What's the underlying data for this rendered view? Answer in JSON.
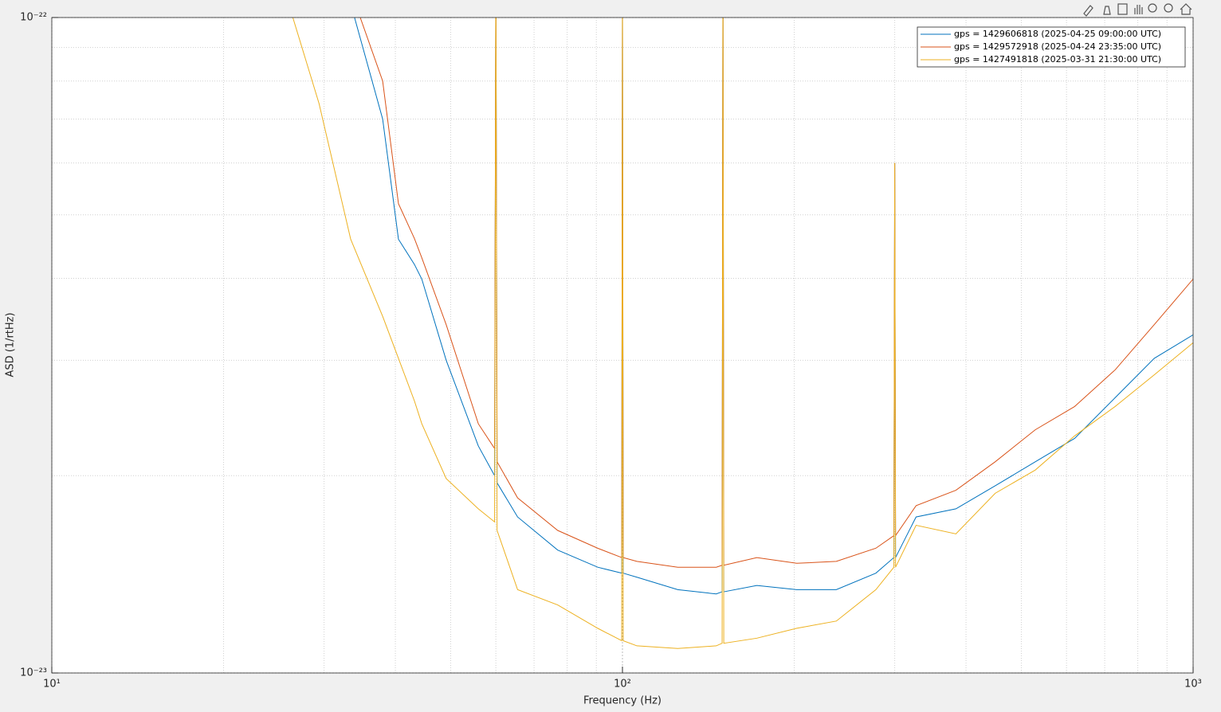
{
  "chart_data": {
    "type": "line",
    "xlabel": "Frequency (Hz)",
    "ylabel": "ASD (1/rtHz)",
    "xscale": "log",
    "yscale": "log",
    "grid": true,
    "legend": "upper right",
    "xlim": [
      10,
      1000
    ],
    "ylim": [
      1e-23,
      1e-22
    ],
    "xticks": [
      {
        "value": 10,
        "label": "10¹"
      },
      {
        "value": 100,
        "label": "10²"
      },
      {
        "value": 1000,
        "label": "10³"
      }
    ],
    "yticks": [
      {
        "value": 1e-23,
        "label": "10⁻²³"
      },
      {
        "value": 1e-22,
        "label": "10⁻²²"
      }
    ],
    "x": [
      26,
      29.4,
      33.4,
      38,
      40.5,
      43.2,
      44.5,
      49.1,
      55.9,
      59.7,
      60,
      60.3,
      65.5,
      77,
      90.5,
      99.7,
      100,
      100.3,
      106,
      125,
      146,
      149.5,
      150,
      150.5,
      172,
      202,
      237,
      278,
      299,
      300,
      301,
      327,
      384,
      450,
      529,
      620,
      730,
      855,
      1000
    ],
    "series": [
      {
        "name": "gps = 1429606818 (2025-04-25 09:00:00 UTC)",
        "color": "#0072bd",
        "values": [
          null,
          null,
          1.05e-22,
          7e-23,
          4.59e-23,
          4.2e-23,
          3.99e-23,
          3e-23,
          2.22e-23,
          2e-23,
          1.2e-22,
          1.95e-23,
          1.73e-23,
          1.54e-23,
          1.45e-23,
          1.42e-23,
          1.1e-22,
          1.42e-23,
          1.4e-23,
          1.34e-23,
          1.32e-23,
          1.33e-23,
          1.2e-22,
          1.33e-23,
          1.36e-23,
          1.34e-23,
          1.34e-23,
          1.42e-23,
          1.5e-23,
          6e-23,
          1.5e-23,
          1.73e-23,
          1.78e-23,
          1.93e-23,
          2.1e-23,
          2.28e-23,
          2.63e-23,
          3.02e-23,
          3.28e-23
        ]
      },
      {
        "name": "gps = 1429572918 (2025-04-24 23:35:00 UTC)",
        "color": "#d95319",
        "values": [
          null,
          null,
          1.1e-22,
          8e-23,
          5.2e-23,
          4.6e-23,
          4.3e-23,
          3.4e-23,
          2.4e-23,
          2.2e-23,
          1.2e-22,
          2.1e-23,
          1.85e-23,
          1.65e-23,
          1.55e-23,
          1.5e-23,
          1.1e-22,
          1.5e-23,
          1.48e-23,
          1.45e-23,
          1.45e-23,
          1.46e-23,
          1.2e-22,
          1.46e-23,
          1.5e-23,
          1.47e-23,
          1.48e-23,
          1.55e-23,
          1.62e-23,
          6e-23,
          1.62e-23,
          1.8e-23,
          1.9e-23,
          2.1e-23,
          2.35e-23,
          2.55e-23,
          2.9e-23,
          3.4e-23,
          3.99e-23
        ]
      },
      {
        "name": "gps = 1427491818 (2025-03-31 21:30:00 UTC)",
        "color": "#edb120",
        "values": [
          1.05e-22,
          7.39e-23,
          4.59e-23,
          3.5e-23,
          3.02e-23,
          2.6e-23,
          2.4e-23,
          1.98e-23,
          1.78e-23,
          1.7e-23,
          1.2e-22,
          1.65e-23,
          1.34e-23,
          1.27e-23,
          1.17e-23,
          1.12e-23,
          1.1e-22,
          1.12e-23,
          1.1e-23,
          1.09e-23,
          1.1e-23,
          1.11e-23,
          1.2e-22,
          1.11e-23,
          1.13e-23,
          1.17e-23,
          1.2e-23,
          1.34e-23,
          1.45e-23,
          6e-23,
          1.45e-23,
          1.68e-23,
          1.63e-23,
          1.88e-23,
          2.04e-23,
          2.3e-23,
          2.55e-23,
          2.85e-23,
          3.19e-23
        ]
      }
    ]
  }
}
